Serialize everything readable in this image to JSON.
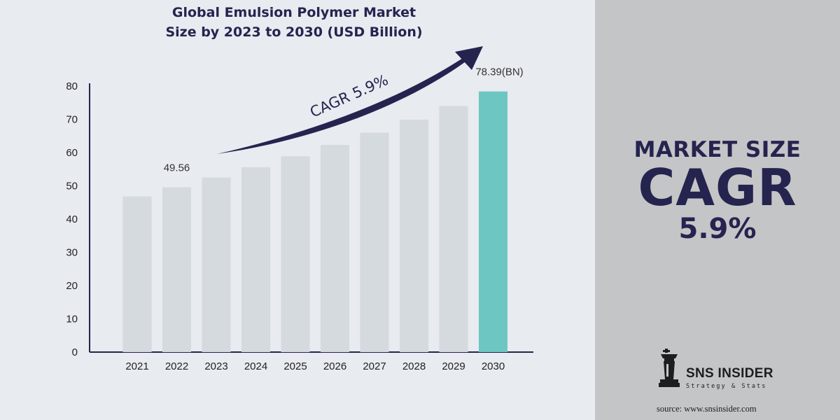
{
  "chart_data": {
    "type": "bar",
    "title_lines": [
      "Global Emulsion Polymer Market",
      "Size by 2023 to 2030 (USD Billion)"
    ],
    "categories": [
      "2021",
      "2022",
      "2023",
      "2024",
      "2025",
      "2026",
      "2027",
      "2028",
      "2029",
      "2030"
    ],
    "values": [
      46.8,
      49.56,
      52.5,
      55.6,
      58.9,
      62.3,
      66.0,
      69.9,
      74.0,
      78.39
    ],
    "ylim": [
      0,
      80
    ],
    "y_ticks": [
      0,
      10,
      20,
      30,
      40,
      50,
      60,
      70,
      80
    ],
    "data_labels": [
      {
        "index": 1,
        "text": "49.56"
      },
      {
        "index": 9,
        "text": "78.39(BN)"
      }
    ],
    "highlight_index": 9,
    "annotation": "CAGR 5.9%",
    "grid": false,
    "legend": "none",
    "colors": {
      "bar": "#d5dadf",
      "highlight": "#6ec6c3",
      "axis": "#25244f",
      "arrow": "#25244f"
    }
  },
  "side_panel": {
    "label": "MARKET SIZE",
    "metric": "CAGR",
    "value": "5.9%"
  },
  "branding": {
    "name": "SNS INSIDER",
    "tagline": "Strategy & Stats",
    "icon": "chess-piece-icon"
  },
  "footer": {
    "source": "source: www.snsinsider.com"
  }
}
